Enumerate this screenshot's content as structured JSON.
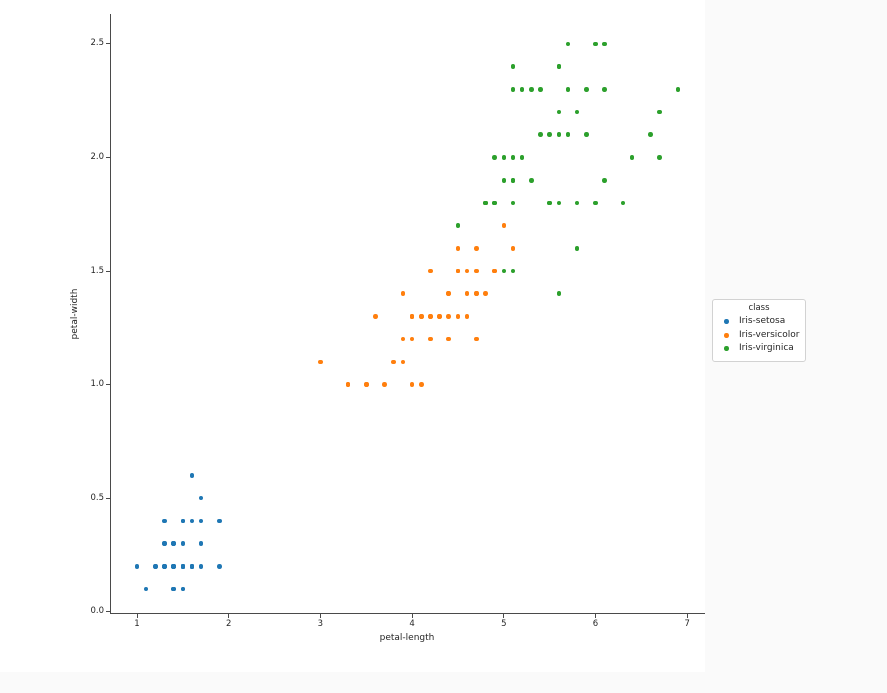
{
  "page": {
    "background": "#fafafa",
    "figure_background": "#ffffff"
  },
  "chart_data": {
    "type": "scatter",
    "title": "",
    "xlabel": "petal-length",
    "ylabel": "petal-width",
    "xlim": [
      0.7,
      7.2
    ],
    "ylim": [
      -0.02,
      2.63
    ],
    "grid": false,
    "xticks": {
      "values": [
        1,
        2,
        3,
        4,
        5,
        6,
        7
      ],
      "labels": [
        "1",
        "2",
        "3",
        "4",
        "5",
        "6",
        "7"
      ]
    },
    "yticks": {
      "values": [
        0,
        0.5,
        1,
        1.5,
        2,
        2.5
      ],
      "labels": [
        "0.0",
        "0.5",
        "1.0",
        "1.5",
        "2.0",
        "2.5"
      ]
    },
    "legend": {
      "title": "class",
      "position": "right-outside"
    },
    "series": [
      {
        "name": "Iris-setosa",
        "color": "#1f77b4",
        "points": [
          [
            1.4,
            0.2
          ],
          [
            1.4,
            0.2
          ],
          [
            1.3,
            0.2
          ],
          [
            1.5,
            0.2
          ],
          [
            1.4,
            0.2
          ],
          [
            1.7,
            0.4
          ],
          [
            1.4,
            0.3
          ],
          [
            1.5,
            0.2
          ],
          [
            1.4,
            0.2
          ],
          [
            1.5,
            0.1
          ],
          [
            1.5,
            0.2
          ],
          [
            1.6,
            0.2
          ],
          [
            1.4,
            0.1
          ],
          [
            1.1,
            0.1
          ],
          [
            1.2,
            0.2
          ],
          [
            1.5,
            0.4
          ],
          [
            1.3,
            0.4
          ],
          [
            1.4,
            0.3
          ],
          [
            1.7,
            0.3
          ],
          [
            1.5,
            0.3
          ],
          [
            1.7,
            0.2
          ],
          [
            1.5,
            0.4
          ],
          [
            1.0,
            0.2
          ],
          [
            1.7,
            0.5
          ],
          [
            1.9,
            0.2
          ],
          [
            1.6,
            0.2
          ],
          [
            1.6,
            0.4
          ],
          [
            1.5,
            0.2
          ],
          [
            1.4,
            0.2
          ],
          [
            1.6,
            0.2
          ],
          [
            1.6,
            0.2
          ],
          [
            1.5,
            0.4
          ],
          [
            1.5,
            0.1
          ],
          [
            1.4,
            0.2
          ],
          [
            1.5,
            0.2
          ],
          [
            1.2,
            0.2
          ],
          [
            1.3,
            0.2
          ],
          [
            1.4,
            0.1
          ],
          [
            1.3,
            0.2
          ],
          [
            1.5,
            0.2
          ],
          [
            1.3,
            0.3
          ],
          [
            1.3,
            0.3
          ],
          [
            1.3,
            0.2
          ],
          [
            1.6,
            0.6
          ],
          [
            1.9,
            0.4
          ],
          [
            1.4,
            0.3
          ],
          [
            1.6,
            0.2
          ],
          [
            1.4,
            0.2
          ],
          [
            1.5,
            0.2
          ],
          [
            1.4,
            0.2
          ]
        ]
      },
      {
        "name": "Iris-versicolor",
        "color": "#ff7f0e",
        "points": [
          [
            4.7,
            1.4
          ],
          [
            4.5,
            1.5
          ],
          [
            4.9,
            1.5
          ],
          [
            4.0,
            1.3
          ],
          [
            4.6,
            1.5
          ],
          [
            4.5,
            1.3
          ],
          [
            4.7,
            1.6
          ],
          [
            3.3,
            1.0
          ],
          [
            4.6,
            1.3
          ],
          [
            3.9,
            1.4
          ],
          [
            3.5,
            1.0
          ],
          [
            4.2,
            1.5
          ],
          [
            4.0,
            1.0
          ],
          [
            4.7,
            1.4
          ],
          [
            3.6,
            1.3
          ],
          [
            4.4,
            1.4
          ],
          [
            4.5,
            1.5
          ],
          [
            4.1,
            1.0
          ],
          [
            4.5,
            1.5
          ],
          [
            3.9,
            1.1
          ],
          [
            4.8,
            1.8
          ],
          [
            4.0,
            1.3
          ],
          [
            4.9,
            1.5
          ],
          [
            4.7,
            1.2
          ],
          [
            4.3,
            1.3
          ],
          [
            4.4,
            1.4
          ],
          [
            4.8,
            1.4
          ],
          [
            5.0,
            1.7
          ],
          [
            4.5,
            1.5
          ],
          [
            3.5,
            1.0
          ],
          [
            3.8,
            1.1
          ],
          [
            3.7,
            1.0
          ],
          [
            3.9,
            1.2
          ],
          [
            5.1,
            1.6
          ],
          [
            4.5,
            1.5
          ],
          [
            4.5,
            1.6
          ],
          [
            4.7,
            1.5
          ],
          [
            4.4,
            1.3
          ],
          [
            4.1,
            1.3
          ],
          [
            4.0,
            1.3
          ],
          [
            4.4,
            1.2
          ],
          [
            4.6,
            1.4
          ],
          [
            4.0,
            1.2
          ],
          [
            3.3,
            1.0
          ],
          [
            4.2,
            1.3
          ],
          [
            4.2,
            1.2
          ],
          [
            4.2,
            1.3
          ],
          [
            4.3,
            1.3
          ],
          [
            3.0,
            1.1
          ],
          [
            4.1,
            1.3
          ]
        ]
      },
      {
        "name": "Iris-virginica",
        "color": "#2ca02c",
        "points": [
          [
            6.0,
            2.5
          ],
          [
            5.1,
            1.9
          ],
          [
            5.9,
            2.1
          ],
          [
            5.6,
            1.8
          ],
          [
            5.8,
            2.2
          ],
          [
            6.6,
            2.1
          ],
          [
            4.5,
            1.7
          ],
          [
            6.3,
            1.8
          ],
          [
            5.8,
            1.8
          ],
          [
            6.1,
            2.5
          ],
          [
            5.1,
            2.0
          ],
          [
            5.3,
            1.9
          ],
          [
            5.5,
            2.1
          ],
          [
            5.0,
            2.0
          ],
          [
            5.1,
            2.4
          ],
          [
            5.3,
            2.3
          ],
          [
            5.5,
            1.8
          ],
          [
            6.7,
            2.2
          ],
          [
            6.9,
            2.3
          ],
          [
            5.0,
            1.5
          ],
          [
            5.7,
            2.3
          ],
          [
            4.9,
            2.0
          ],
          [
            6.7,
            2.0
          ],
          [
            4.9,
            1.8
          ],
          [
            5.7,
            2.1
          ],
          [
            6.0,
            1.8
          ],
          [
            4.8,
            1.8
          ],
          [
            4.9,
            1.8
          ],
          [
            5.6,
            2.1
          ],
          [
            5.8,
            1.6
          ],
          [
            6.1,
            1.9
          ],
          [
            6.4,
            2.0
          ],
          [
            5.6,
            2.2
          ],
          [
            5.1,
            1.5
          ],
          [
            5.6,
            1.4
          ],
          [
            6.1,
            2.3
          ],
          [
            5.6,
            2.4
          ],
          [
            5.5,
            1.8
          ],
          [
            4.8,
            1.8
          ],
          [
            5.4,
            2.1
          ],
          [
            5.6,
            2.4
          ],
          [
            5.1,
            2.3
          ],
          [
            5.1,
            1.9
          ],
          [
            5.9,
            2.3
          ],
          [
            5.7,
            2.5
          ],
          [
            5.2,
            2.3
          ],
          [
            5.0,
            1.9
          ],
          [
            5.2,
            2.0
          ],
          [
            5.4,
            2.3
          ],
          [
            5.1,
            1.8
          ]
        ]
      }
    ]
  }
}
